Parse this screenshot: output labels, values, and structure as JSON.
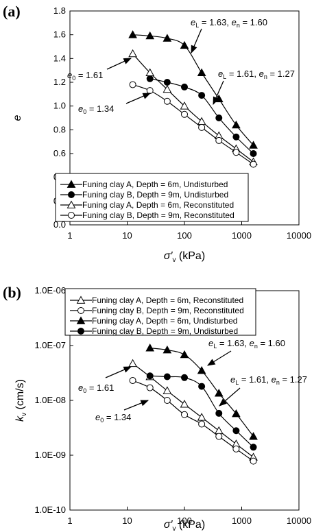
{
  "chart_data": [
    {
      "type": "line",
      "panel_label": "(a)",
      "xlabel_main": "σ′",
      "xlabel_sub": "v",
      "xlabel_unit": " (kPa)",
      "ylabel": "e",
      "x_scale": "log",
      "xlim": [
        1,
        10000
      ],
      "ylim": [
        0,
        1.8
      ],
      "x_ticks": [
        "1",
        "10",
        "100",
        "1000",
        "10000"
      ],
      "y_ticks": [
        "0.0",
        "0.2",
        "0.4",
        "0.6",
        "0.8",
        "1.0",
        "1.2",
        "1.4",
        "1.6",
        "1.8"
      ],
      "legend_position": "bottom-left",
      "series": [
        {
          "name": "Funing clay A, Depth = 6m, Undisturbed",
          "marker": "triangle",
          "filled": true,
          "x": [
            12.5,
            25,
            50,
            100,
            200,
            400,
            800,
            1600
          ],
          "y": [
            1.6,
            1.59,
            1.57,
            1.51,
            1.28,
            1.06,
            0.84,
            0.67
          ]
        },
        {
          "name": "Funing clay B, Depth = 9m, Undisturbed",
          "marker": "circle",
          "filled": true,
          "x": [
            25,
            50,
            100,
            200,
            400,
            800,
            1600
          ],
          "y": [
            1.23,
            1.2,
            1.16,
            1.09,
            0.9,
            0.74,
            0.6
          ]
        },
        {
          "name": "Funing clay A, Depth = 6m, Reconstituted",
          "marker": "triangle",
          "filled": false,
          "x": [
            12.5,
            25,
            50,
            100,
            200,
            400,
            800,
            1600
          ],
          "y": [
            1.44,
            1.28,
            1.14,
            1.0,
            0.87,
            0.75,
            0.64,
            0.53
          ]
        },
        {
          "name": "Funing clay B, Depth = 9m, Reconstituted",
          "marker": "circle",
          "filled": false,
          "x": [
            12.5,
            25,
            50,
            100,
            200,
            400,
            800,
            1600
          ],
          "y": [
            1.18,
            1.13,
            1.04,
            0.93,
            0.82,
            0.71,
            0.61,
            0.51
          ]
        }
      ],
      "annotations": [
        {
          "text": "e",
          "sub1": "L",
          "mid": " = 1.63, ",
          "text2": "e",
          "sub2": "n",
          "tail": " = 1.60"
        },
        {
          "text": "e",
          "sub1": "L",
          "mid": " = 1.61, ",
          "text2": "e",
          "sub2": "n",
          "tail": " = 1.27"
        },
        {
          "text": "e",
          "sub1": "0",
          "mid": " = 1.61"
        },
        {
          "text": "e",
          "sub1": "0",
          "mid": " = 1.34"
        }
      ]
    },
    {
      "type": "line",
      "panel_label": "(b)",
      "xlabel_main": "σ′",
      "xlabel_sub": "v",
      "xlabel_unit": " (kPa)",
      "ylabel_main": "k",
      "ylabel_sub": "v",
      "ylabel_unit": " (cm/s)",
      "x_scale": "log",
      "y_scale": "log",
      "xlim": [
        1,
        10000
      ],
      "ylim": [
        1e-10,
        1e-06
      ],
      "x_ticks": [
        "1",
        "10",
        "100",
        "1000",
        "10000"
      ],
      "y_ticks": [
        "1.0E-10",
        "1.0E-09",
        "1.0E-08",
        "1.0E-07",
        "1.0E-06"
      ],
      "legend_position": "top-left",
      "series": [
        {
          "name": "Funing clay A, Depth = 6m, Reconstituted",
          "marker": "triangle",
          "filled": false,
          "x": [
            12.5,
            25,
            50,
            100,
            200,
            400,
            800,
            1600
          ],
          "y": [
            4.7e-08,
            2.7e-08,
            1.5e-08,
            8.5e-09,
            4.9e-09,
            2.8e-09,
            1.6e-09,
            9.2e-10
          ]
        },
        {
          "name": "Funing clay B, Depth = 9m, Reconstituted",
          "marker": "circle",
          "filled": false,
          "x": [
            12.5,
            25,
            50,
            100,
            200,
            400,
            800,
            1600
          ],
          "y": [
            2.3e-08,
            1.7e-08,
            1e-08,
            5.5e-09,
            3.7e-09,
            2.2e-09,
            1.3e-09,
            7.8e-10
          ]
        },
        {
          "name": "Funing clay A, Depth = 6m, Undisturbed",
          "marker": "triangle",
          "filled": true,
          "x": [
            25,
            50,
            100,
            200,
            400,
            800,
            1600
          ],
          "y": [
            9e-08,
            8.3e-08,
            6.8e-08,
            3.5e-08,
            1.35e-08,
            5.7e-09,
            2.2e-09
          ]
        },
        {
          "name": "Funing clay B, Depth = 9m, Undisturbed",
          "marker": "circle",
          "filled": true,
          "x": [
            25,
            50,
            100,
            200,
            400,
            800,
            1600
          ],
          "y": [
            2.8e-08,
            2.7e-08,
            2.6e-08,
            1.8e-08,
            5.8e-09,
            2.8e-09,
            1.4e-09
          ]
        }
      ],
      "annotations": [
        {
          "text": "e",
          "sub1": "L",
          "mid": " = 1.63, ",
          "text2": "e",
          "sub2": "n",
          "tail": " = 1.60"
        },
        {
          "text": "e",
          "sub1": "L",
          "mid": " = 1.61, ",
          "text2": "e",
          "sub2": "n",
          "tail": " = 1.27"
        },
        {
          "text": "e",
          "sub1": "0",
          "mid": " = 1.61"
        },
        {
          "text": "e",
          "sub1": "0",
          "mid": " = 1.34"
        }
      ]
    }
  ]
}
